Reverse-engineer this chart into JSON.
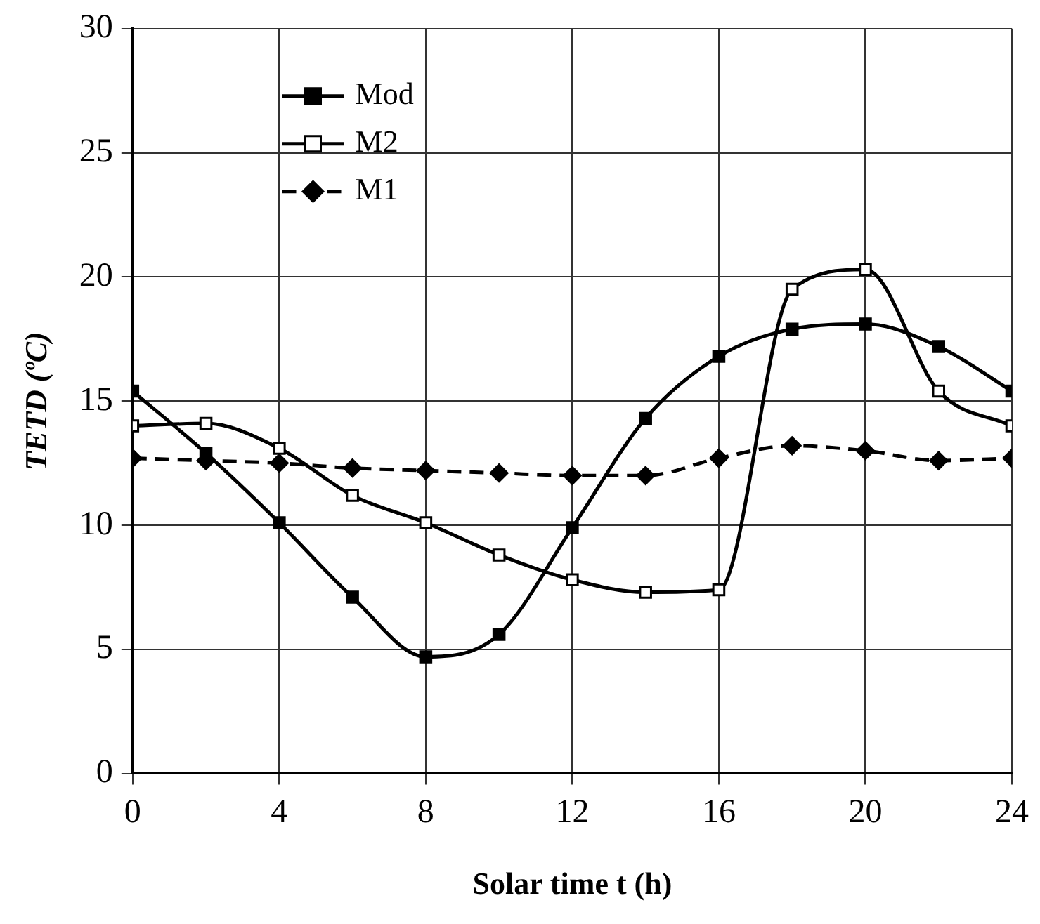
{
  "chart_data": {
    "type": "line",
    "xlabel": "Solar time t (h)",
    "ylabel": "TETD (ºC)",
    "x": [
      0,
      2,
      4,
      6,
      8,
      10,
      12,
      14,
      16,
      18,
      20,
      22,
      24
    ],
    "series": [
      {
        "name": "Mod",
        "color": "#000000",
        "marker": "square",
        "line_style": "solid",
        "values": [
          15.4,
          12.9,
          10.1,
          7.1,
          4.7,
          5.6,
          9.9,
          14.3,
          16.8,
          17.9,
          18.1,
          17.2,
          15.4
        ]
      },
      {
        "name": "M2",
        "color": "#000000",
        "marker": "square",
        "line_style": "solid",
        "values": [
          14.0,
          14.1,
          13.1,
          11.2,
          10.1,
          8.8,
          7.8,
          7.3,
          7.4,
          19.5,
          20.3,
          15.4,
          14.0
        ]
      },
      {
        "name": "M1",
        "color": "#000000",
        "marker": "diamond",
        "line_style": "dashed",
        "values": [
          12.7,
          12.6,
          12.5,
          12.3,
          12.2,
          12.1,
          12.0,
          12.0,
          12.7,
          13.2,
          13.0,
          12.6,
          12.7
        ]
      }
    ],
    "xlim": [
      0,
      24
    ],
    "xticks": [
      0,
      4,
      8,
      12,
      16,
      20,
      24
    ],
    "ylim": [
      0,
      30
    ],
    "yticks": [
      0,
      5,
      10,
      15,
      20,
      25,
      30
    ],
    "grid": true,
    "legend": "top left"
  }
}
